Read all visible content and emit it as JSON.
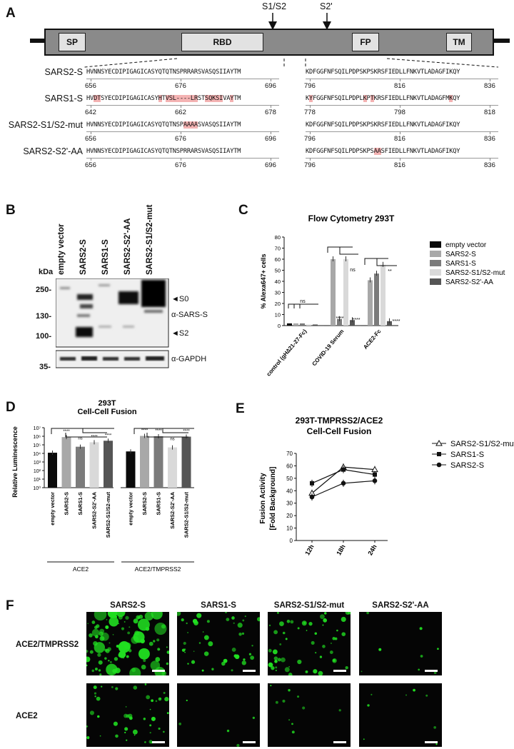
{
  "panels": {
    "a": "A",
    "b": "B",
    "c": "C",
    "d": "D",
    "e": "E",
    "f": "F"
  },
  "panel_a": {
    "sites": [
      "S1/S2",
      "S2'"
    ],
    "domains": [
      "SP",
      "RBD",
      "FP",
      "TM"
    ],
    "rows": [
      {
        "name": "SARS2-S",
        "seq1": "HVNNSYECDIPIGAGICASYQTQTNSPRRARSVASQSIIAYTM",
        "seq2": "KDFGGFNFSQILPDPSKPSKRSFIEDLLFNKVTLADAGFIKQY",
        "n1": [
          "656",
          "676",
          "696"
        ],
        "n2": [
          "796",
          "816",
          "836"
        ]
      },
      {
        "name": "SARS1-S",
        "seq1": "HVDTSYECDIPIGAGICASYHTVSL----LRSTSQKSIVAYTM",
        "seq2": "KYFGGFNFSQILPDPLKPTKRSFIEDLLFNKVTLADAGFMKQY",
        "n1": [
          "642",
          "662",
          "678"
        ],
        "n2": [
          "778",
          "798",
          "818"
        ]
      },
      {
        "name": "SARS2-S1/S2-mut",
        "seq1": "HVNNSYECDIPIGAGICASYQTQTNSPAAAASVASQSIIAYTM",
        "seq2": "KDFGGFNFSQILPDPSKPSKRSFIEDLLFNKVTLADAGFIKQY",
        "n1": [
          "656",
          "676",
          "696"
        ],
        "n2": [
          "796",
          "816",
          "836"
        ]
      },
      {
        "name": "SARS2-S2'-AA",
        "seq1": "HVNNSYECDIPIGAGICASYQTQTNSPRRARSVASQSIIAYTM",
        "seq2": "KDFGGFNFSQILPDPSKPSAASFIEDLLFNKVTLADAGFIKQY",
        "n1": [
          "656",
          "676",
          "696"
        ],
        "n2": [
          "796",
          "816",
          "836"
        ]
      }
    ]
  },
  "panel_b": {
    "lanes": [
      "empty vector",
      "SARS2-S",
      "SARS1-S",
      "SARS2-S2'-AA",
      "SARS2-S1/S2-mut"
    ],
    "kda_label": "kDa",
    "markers": [
      "250-",
      "130-",
      "100-",
      "35-"
    ],
    "bands": [
      "◄S0",
      "α-SARS-S",
      "◄S2",
      "α-GAPDH"
    ]
  },
  "panel_c": {
    "title": "Flow Cytometry 293T",
    "legend": [
      "empty vector",
      "SARS2-S",
      "SARS1-S",
      "SARS2-S1/S2-mut",
      "SARS2-S2'-AA"
    ],
    "colors": [
      "#0a0a0a",
      "#a8a8a8",
      "#7b7b7b",
      "#d9d9d9",
      "#555555"
    ],
    "sig": [
      "ns",
      "****",
      "ns",
      "****",
      "**",
      "****"
    ],
    "chart_data": {
      "type": "bar",
      "categories": [
        "control (gH∆21-27-Fc)",
        "COVID-19 Serum",
        "ACE2-Fc"
      ],
      "ylabel": "% Alexa647+ cells",
      "ylim": [
        0,
        80
      ],
      "yticks": [
        0,
        10,
        20,
        30,
        40,
        50,
        60,
        70,
        80
      ],
      "series": [
        {
          "name": "empty vector",
          "values": [
            2,
            0,
            0
          ]
        },
        {
          "name": "SARS2-S",
          "values": [
            2,
            60,
            41
          ]
        },
        {
          "name": "SARS1-S",
          "values": [
            2,
            6,
            47
          ]
        },
        {
          "name": "SARS2-S1/S2-mut",
          "values": [
            1,
            60,
            55
          ]
        },
        {
          "name": "SARS2-S2'-AA",
          "values": [
            1,
            5,
            4
          ]
        }
      ]
    }
  },
  "panel_d": {
    "title1": "293T",
    "title2": "Cell-Cell Fusion",
    "ylabel": "Relative Luminescence",
    "groups": [
      "ACE2",
      "ACE2/TMPRSS2"
    ],
    "sig": [
      "****",
      "ns",
      "****",
      "****",
      "****",
      "****",
      "ns",
      "****"
    ],
    "yticks": [
      "10⁷",
      "10⁶",
      "10⁵",
      "10⁴",
      "10³",
      "10²",
      "10¹",
      "10⁰"
    ],
    "chart_data": {
      "type": "bar",
      "categories": [
        "empty vector",
        "SARS2-S",
        "SARS1-S",
        "SARS2-S2'-AA",
        "SARS2-S1/S2-mut",
        "empty vector",
        "SARS2-S",
        "SARS1-S",
        "SARS2-S2'-AA",
        "SARS2-S1/S2-mut"
      ],
      "values": [
        12000,
        800000,
        60000,
        200000,
        300000,
        17000,
        1100000,
        1000000,
        50000,
        900000
      ],
      "colors": [
        "#0a0a0a",
        "#a8a8a8",
        "#7b7b7b",
        "#d9d9d9",
        "#555555",
        "#0a0a0a",
        "#a8a8a8",
        "#7b7b7b",
        "#d9d9d9",
        "#555555"
      ],
      "ylim": [
        1,
        10000000
      ],
      "scale": "log"
    }
  },
  "panel_e": {
    "title1": "293T-TMPRSS2/ACE2",
    "title2": "Cell-Cell Fusion",
    "ylabel1": "Fusion Activity",
    "ylabel2": "[Fold Background]",
    "chart_data": {
      "type": "line",
      "x": [
        "12h",
        "18h",
        "24h"
      ],
      "ylim": [
        0,
        70
      ],
      "yticks": [
        0,
        10,
        20,
        30,
        40,
        50,
        60,
        70
      ],
      "series": [
        {
          "name": "SARS2-S1/S2-mut",
          "values": [
            38,
            59,
            57
          ],
          "marker": "triangle"
        },
        {
          "name": "SARS1-S",
          "values": [
            46,
            57,
            53
          ],
          "marker": "square"
        },
        {
          "name": "SARS2-S",
          "values": [
            35,
            46,
            48
          ],
          "marker": "circle"
        }
      ]
    }
  },
  "panel_f": {
    "columns": [
      "SARS2-S",
      "SARS1-S",
      "SARS2-S1/S2-mut",
      "SARS2-S2'-AA"
    ],
    "rows": [
      "ACE2/TMPRSS2",
      "ACE2"
    ],
    "signal": [
      [
        1.0,
        0.45,
        0.55,
        0.05
      ],
      [
        0.45,
        0.02,
        0.08,
        0.06
      ]
    ],
    "stain_color": "#21e021"
  }
}
